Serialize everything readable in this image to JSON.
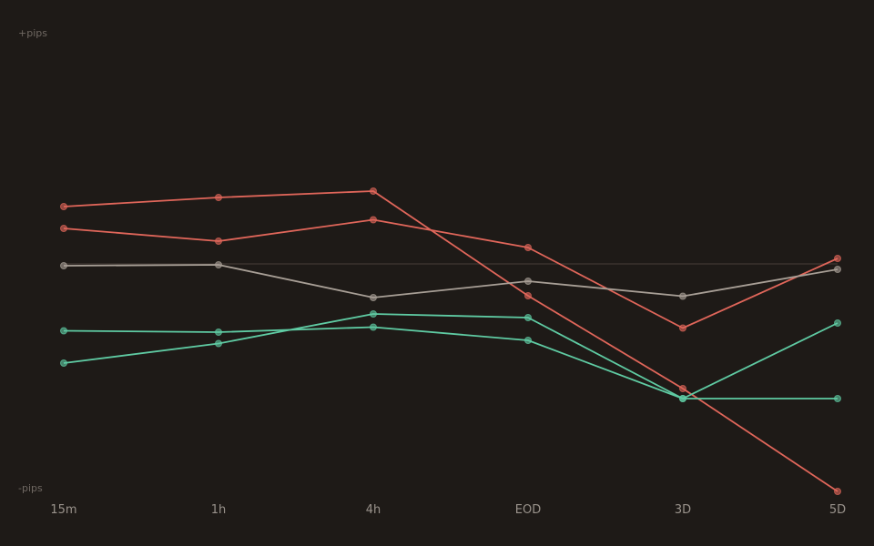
{
  "chart_data": {
    "type": "line",
    "title": "",
    "xlabel": "",
    "ylabel": "",
    "y_top_label": "+pips",
    "y_bottom_label": "-pips",
    "categories": [
      "15m",
      "1h",
      "4h",
      "EOD",
      "3D",
      "5D"
    ],
    "ylim": [
      -100,
      100
    ],
    "zero_line": true,
    "grid": false,
    "series": [
      {
        "color": "#e0665a",
        "values": [
          25.2,
          29.2,
          32.0,
          -14.0,
          -54.8,
          -100.0
        ]
      },
      {
        "color": "#e0665a",
        "values": [
          15.6,
          10.0,
          19.4,
          7.2,
          -28.2,
          2.4
        ]
      },
      {
        "color": "#a89f96",
        "values": [
          -0.8,
          -0.4,
          -14.8,
          -7.6,
          -14.2,
          -2.4
        ]
      },
      {
        "color": "#5fcba3",
        "values": [
          -29.4,
          -30.0,
          -27.8,
          -33.6,
          -59.2,
          -59.2
        ]
      },
      {
        "color": "#5fcba3",
        "values": [
          -43.6,
          -35.0,
          -22.0,
          -23.6,
          -59.2,
          -26.0
        ]
      }
    ]
  }
}
